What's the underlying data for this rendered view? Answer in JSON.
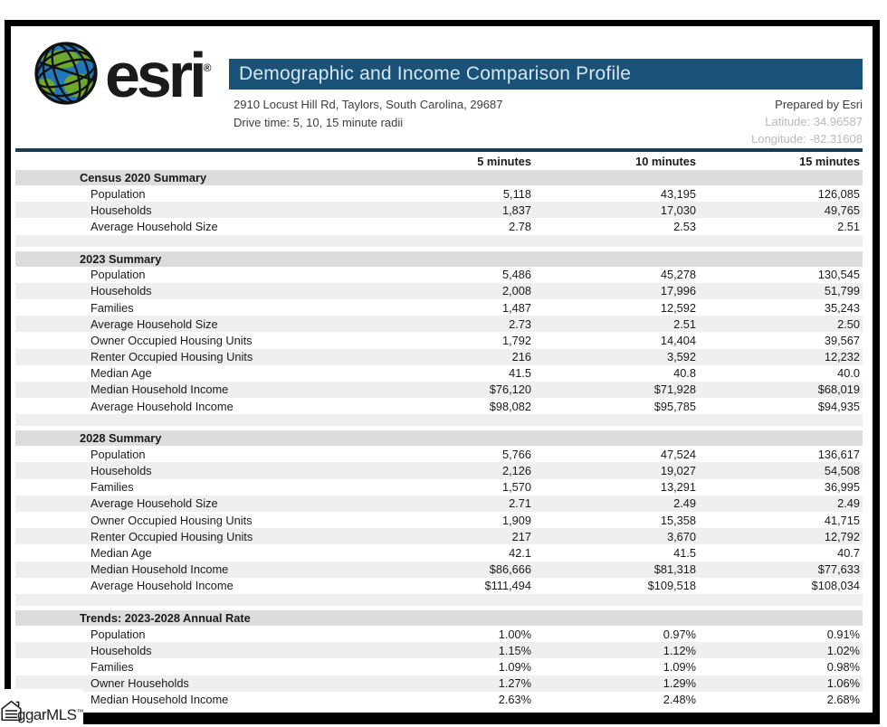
{
  "header": {
    "logo_text": "esri",
    "logo_registered": "®",
    "title": "Demographic and Income Comparison Profile",
    "address_line1": "2910 Locust Hill Rd, Taylors, South Carolina, 29687",
    "address_line2": "Drive time: 5, 10, 15 minute radii",
    "prepared_by": "Prepared by Esri",
    "latitude": "Latitude: 34.96587",
    "longitude": "Longitude: -82.31608"
  },
  "table": {
    "column_headers": [
      "5 minutes",
      "10 minutes",
      "15 minutes"
    ],
    "sections": [
      {
        "title": "Census 2020 Summary",
        "rows": [
          {
            "label": "Population",
            "values": [
              "5,118",
              "43,195",
              "126,085"
            ]
          },
          {
            "label": "Households",
            "values": [
              "1,837",
              "17,030",
              "49,765"
            ]
          },
          {
            "label": "Average Household Size",
            "values": [
              "2.78",
              "2.53",
              "2.51"
            ]
          }
        ]
      },
      {
        "title": "2023 Summary",
        "rows": [
          {
            "label": "Population",
            "values": [
              "5,486",
              "45,278",
              "130,545"
            ]
          },
          {
            "label": "Households",
            "values": [
              "2,008",
              "17,996",
              "51,799"
            ]
          },
          {
            "label": "Families",
            "values": [
              "1,487",
              "12,592",
              "35,243"
            ]
          },
          {
            "label": "Average Household Size",
            "values": [
              "2.73",
              "2.51",
              "2.50"
            ]
          },
          {
            "label": "Owner Occupied Housing Units",
            "values": [
              "1,792",
              "14,404",
              "39,567"
            ]
          },
          {
            "label": "Renter Occupied Housing Units",
            "values": [
              "216",
              "3,592",
              "12,232"
            ]
          },
          {
            "label": "Median Age",
            "values": [
              "41.5",
              "40.8",
              "40.0"
            ]
          },
          {
            "label": "Median Household Income",
            "values": [
              "$76,120",
              "$71,928",
              "$68,019"
            ]
          },
          {
            "label": "Average Household Income",
            "values": [
              "$98,082",
              "$95,785",
              "$94,935"
            ]
          }
        ]
      },
      {
        "title": "2028 Summary",
        "rows": [
          {
            "label": "Population",
            "values": [
              "5,766",
              "47,524",
              "136,617"
            ]
          },
          {
            "label": "Households",
            "values": [
              "2,126",
              "19,027",
              "54,508"
            ]
          },
          {
            "label": "Families",
            "values": [
              "1,570",
              "13,291",
              "36,995"
            ]
          },
          {
            "label": "Average Household Size",
            "values": [
              "2.71",
              "2.49",
              "2.49"
            ]
          },
          {
            "label": "Owner Occupied Housing Units",
            "values": [
              "1,909",
              "15,358",
              "41,715"
            ]
          },
          {
            "label": "Renter Occupied Housing Units",
            "values": [
              "217",
              "3,670",
              "12,792"
            ]
          },
          {
            "label": "Median Age",
            "values": [
              "42.1",
              "41.5",
              "40.7"
            ]
          },
          {
            "label": "Median Household Income",
            "values": [
              "$86,666",
              "$81,318",
              "$77,633"
            ]
          },
          {
            "label": "Average Household Income",
            "values": [
              "$111,494",
              "$109,518",
              "$108,034"
            ]
          }
        ]
      },
      {
        "title": "Trends: 2023-2028 Annual Rate",
        "rows": [
          {
            "label": "Population",
            "values": [
              "1.00%",
              "0.97%",
              "0.91%"
            ]
          },
          {
            "label": "Households",
            "values": [
              "1.15%",
              "1.12%",
              "1.02%"
            ]
          },
          {
            "label": "Families",
            "values": [
              "1.09%",
              "1.09%",
              "0.98%"
            ]
          },
          {
            "label": "Owner Households",
            "values": [
              "1.27%",
              "1.29%",
              "1.06%"
            ]
          },
          {
            "label": "Median Household Income",
            "values": [
              "2.63%",
              "2.48%",
              "2.68%"
            ]
          }
        ]
      }
    ]
  },
  "footer": {
    "watermark_text": "ggarMLS",
    "watermark_tm": "™"
  },
  "colors": {
    "title_bar": "#1a5176",
    "title_text": "#d6e7f3",
    "divider_line": "#16404f",
    "section_header_bg": "#dcdcdc",
    "alt_row_bg": "#efefef",
    "muted_text": "#b9b9b9",
    "globe_blue": "#2277bd",
    "globe_green": "#6fa82f"
  }
}
